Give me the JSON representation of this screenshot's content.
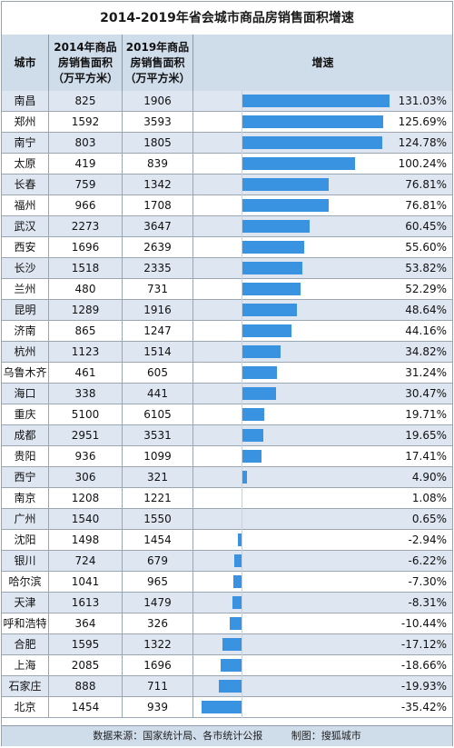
{
  "chart_data": {
    "type": "table",
    "title": "2014-2019年省会城市商品房销售面积增速",
    "columns": [
      "城市",
      "2014年商品\n房销售面积\n（万平方米）",
      "2019年商品\n房销售面积\n（万平方米）",
      "增速"
    ],
    "rows": [
      {
        "city": "南昌",
        "v2014": 825,
        "v2019": 1906,
        "growth": 131.03,
        "label": "131.03%"
      },
      {
        "city": "郑州",
        "v2014": 1592,
        "v2019": 3593,
        "growth": 125.69,
        "label": "125.69%"
      },
      {
        "city": "南宁",
        "v2014": 803,
        "v2019": 1805,
        "growth": 124.78,
        "label": "124.78%"
      },
      {
        "city": "太原",
        "v2014": 419,
        "v2019": 839,
        "growth": 100.24,
        "label": "100.24%"
      },
      {
        "city": "长春",
        "v2014": 759,
        "v2019": 1342,
        "growth": 76.81,
        "label": "76.81%"
      },
      {
        "city": "福州",
        "v2014": 966,
        "v2019": 1708,
        "growth": 76.81,
        "label": "76.81%"
      },
      {
        "city": "武汉",
        "v2014": 2273,
        "v2019": 3647,
        "growth": 60.45,
        "label": "60.45%"
      },
      {
        "city": "西安",
        "v2014": 1696,
        "v2019": 2639,
        "growth": 55.6,
        "label": "55.60%"
      },
      {
        "city": "长沙",
        "v2014": 1518,
        "v2019": 2335,
        "growth": 53.82,
        "label": "53.82%"
      },
      {
        "city": "兰州",
        "v2014": 480,
        "v2019": 731,
        "growth": 52.29,
        "label": "52.29%"
      },
      {
        "city": "昆明",
        "v2014": 1289,
        "v2019": 1916,
        "growth": 48.64,
        "label": "48.64%"
      },
      {
        "city": "济南",
        "v2014": 865,
        "v2019": 1247,
        "growth": 44.16,
        "label": "44.16%"
      },
      {
        "city": "杭州",
        "v2014": 1123,
        "v2019": 1514,
        "growth": 34.82,
        "label": "34.82%"
      },
      {
        "city": "乌鲁木齐",
        "v2014": 461,
        "v2019": 605,
        "growth": 31.24,
        "label": "31.24%"
      },
      {
        "city": "海口",
        "v2014": 338,
        "v2019": 441,
        "growth": 30.47,
        "label": "30.47%"
      },
      {
        "city": "重庆",
        "v2014": 5100,
        "v2019": 6105,
        "growth": 19.71,
        "label": "19.71%"
      },
      {
        "city": "成都",
        "v2014": 2951,
        "v2019": 3531,
        "growth": 19.65,
        "label": "19.65%"
      },
      {
        "city": "贵阳",
        "v2014": 936,
        "v2019": 1099,
        "growth": 17.41,
        "label": "17.41%"
      },
      {
        "city": "西宁",
        "v2014": 306,
        "v2019": 321,
        "growth": 4.9,
        "label": "4.90%"
      },
      {
        "city": "南京",
        "v2014": 1208,
        "v2019": 1221,
        "growth": 1.08,
        "label": "1.08%"
      },
      {
        "city": "广州",
        "v2014": 1540,
        "v2019": 1550,
        "growth": 0.65,
        "label": "0.65%"
      },
      {
        "city": "沈阳",
        "v2014": 1498,
        "v2019": 1454,
        "growth": -2.94,
        "label": "-2.94%"
      },
      {
        "city": "银川",
        "v2014": 724,
        "v2019": 679,
        "growth": -6.22,
        "label": "-6.22%"
      },
      {
        "city": "哈尔滨",
        "v2014": 1041,
        "v2019": 965,
        "growth": -7.3,
        "label": "-7.30%"
      },
      {
        "city": "天津",
        "v2014": 1613,
        "v2019": 1479,
        "growth": -8.31,
        "label": "-8.31%"
      },
      {
        "city": "呼和浩特",
        "v2014": 364,
        "v2019": 326,
        "growth": -10.44,
        "label": "-10.44%"
      },
      {
        "city": "合肥",
        "v2014": 1595,
        "v2019": 1322,
        "growth": -17.12,
        "label": "-17.12%"
      },
      {
        "city": "上海",
        "v2014": 2085,
        "v2019": 1696,
        "growth": -18.66,
        "label": "-18.66%"
      },
      {
        "city": "石家庄",
        "v2014": 888,
        "v2019": 711,
        "growth": -19.93,
        "label": "-19.93%"
      },
      {
        "city": "北京",
        "v2014": 1454,
        "v2019": 939,
        "growth": -35.42,
        "label": "-35.42%"
      }
    ],
    "bar_color": "#3a93e0"
  },
  "footer": {
    "source": "数据来源：国家统计局、各市统计公报",
    "made_by": "制图：搜狐城市"
  }
}
